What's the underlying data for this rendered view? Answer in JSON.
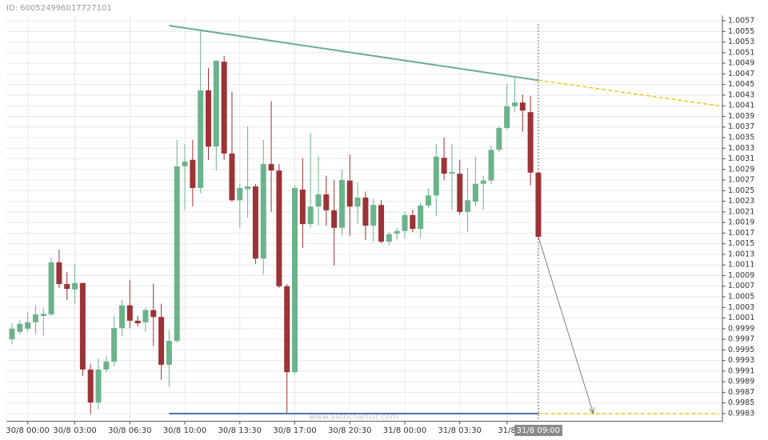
{
  "chart_data": {
    "type": "candlestick",
    "id_label": "ID: 600524996017727101",
    "watermark": "www.autochartist.com",
    "crosshair_label": "31/8 09:00",
    "up_color": "#6cb38d",
    "down_color": "#9c3336",
    "grid": true,
    "ylim": [
      0.9982,
      1.0058
    ],
    "yticks": [
      0.9983,
      0.9985,
      0.9987,
      0.9989,
      0.9991,
      0.9993,
      0.9995,
      0.9997,
      0.9999,
      1.0001,
      1.0003,
      1.0005,
      1.0007,
      1.0009,
      1.0011,
      1.0013,
      1.0015,
      1.0017,
      1.0019,
      1.0021,
      1.0023,
      1.0025,
      1.0027,
      1.0029,
      1.0031,
      1.0033,
      1.0035,
      1.0037,
      1.0039,
      1.0041,
      1.0043,
      1.0045,
      1.0047,
      1.0049,
      1.0051,
      1.0053,
      1.0055,
      1.0057
    ],
    "categories": [
      null,
      null,
      "30/8 00:00",
      null,
      null,
      null,
      null,
      null,
      "30/8 03:00",
      null,
      null,
      null,
      null,
      null,
      null,
      "30/8 06:30",
      null,
      null,
      null,
      null,
      null,
      null,
      "30/8 10:00",
      null,
      null,
      null,
      null,
      null,
      null,
      "30/8 13:30",
      null,
      null,
      null,
      null,
      null,
      null,
      "30/8 17:00",
      null,
      null,
      null,
      null,
      null,
      null,
      "30/8 20:30",
      null,
      null,
      null,
      null,
      null,
      null,
      "31/8 00:00",
      null,
      null,
      null,
      null,
      null,
      null,
      "31/8 03:30",
      null,
      null,
      null,
      null,
      null,
      "31/8",
      null,
      null,
      null,
      null
    ],
    "open": [
      0.9997,
      0.99984,
      0.9999,
      1.00002,
      1.00014,
      1.00017,
      1.00115,
      1.00074,
      1.00064,
      1.00076,
      0.99913,
      0.99851,
      0.99913,
      0.99928,
      0.99991,
      1.00034,
      1.00005,
      1.00002,
      1.00025,
      1.00012,
      0.99922,
      0.99967,
      1.00296,
      1.00308,
      1.00255,
      1.00439,
      1.00333,
      1.00493,
      1.0032,
      1.00232,
      1.00253,
      1.00258,
      1.00122,
      1.003,
      1.00288,
      1.0007,
      0.99908,
      1.00252,
      1.00187,
      1.0022,
      1.00243,
      1.00213,
      1.0018,
      1.00269,
      1.0022,
      1.00237,
      1.00184,
      1.00223,
      1.00154,
      1.00169,
      1.00174,
      1.00204,
      1.00178,
      1.00222,
      1.00241,
      1.00312,
      1.00282,
      1.00282,
      1.0021,
      1.00229,
      1.00263,
      1.00269,
      1.00327,
      1.00368,
      1.00409,
      1.00416,
      1.00398,
      1.00284
    ],
    "high": [
      1.0,
      1.00006,
      1.00021,
      1.00034,
      1.00029,
      1.00124,
      1.00139,
      1.00097,
      1.00112,
      1.00076,
      0.99924,
      0.99934,
      0.99939,
      1.00014,
      1.00044,
      1.00082,
      1.00014,
      1.00029,
      1.00075,
      1.00037,
      0.99988,
      1.00346,
      1.00338,
      1.00346,
      1.00552,
      1.00481,
      1.00495,
      1.00504,
      1.00436,
      1.00263,
      1.00371,
      1.00263,
      1.00346,
      1.00419,
      1.003,
      1.00074,
      1.0026,
      1.00311,
      1.00359,
      1.00315,
      1.00278,
      1.0027,
      1.0029,
      1.00318,
      1.00266,
      1.00248,
      1.00235,
      1.00232,
      1.00172,
      1.0018,
      1.0021,
      1.00214,
      1.00228,
      1.00255,
      1.00338,
      1.0035,
      1.00338,
      1.00308,
      1.00293,
      1.00315,
      1.00278,
      1.00335,
      1.00371,
      1.00451,
      1.00466,
      1.00431,
      1.00428,
      1.00284
    ],
    "low": [
      0.9996,
      0.99979,
      0.99984,
      0.99979,
      0.99976,
      1.00014,
      1.00067,
      1.00044,
      1.00037,
      0.99901,
      0.99829,
      0.99838,
      0.99908,
      0.99919,
      0.99976,
      0.99991,
      0.99994,
      0.99984,
      0.99957,
      0.99893,
      0.9988,
      0.99964,
      1.00214,
      1.0022,
      1.00245,
      1.00308,
      1.00288,
      1.00308,
      1.00229,
      1.0018,
      1.00199,
      1.00112,
      1.00092,
      1.0021,
      1.00067,
      0.9983,
      0.99905,
      1.00142,
      1.0018,
      1.00184,
      1.00184,
      1.00109,
      1.00165,
      1.00165,
      1.00187,
      1.00157,
      1.00154,
      1.00151,
      1.00147,
      1.00157,
      1.0016,
      1.00172,
      1.0016,
      1.00217,
      1.00202,
      1.0027,
      1.00214,
      1.00205,
      1.00172,
      1.0022,
      1.00214,
      1.00263,
      1.00323,
      1.00365,
      1.00398,
      1.00361,
      1.0026,
      1.0016
    ],
    "close": [
      0.9999,
      0.99999,
      1.00002,
      1.00017,
      1.00018,
      1.00115,
      1.00074,
      1.00065,
      1.00076,
      0.99913,
      0.99851,
      0.99913,
      0.99928,
      0.99991,
      1.00034,
      1.00005,
      1.0,
      1.00025,
      1.00012,
      0.99922,
      0.99967,
      1.00296,
      1.00305,
      1.00255,
      1.00439,
      1.00333,
      1.00495,
      1.0032,
      1.00232,
      1.00255,
      1.00258,
      1.00122,
      1.003,
      1.00288,
      1.0007,
      0.99908,
      1.00255,
      1.00187,
      1.0022,
      1.00243,
      1.00213,
      1.0018,
      1.0027,
      1.0022,
      1.00237,
      1.00184,
      1.00223,
      1.00154,
      1.00168,
      1.00174,
      1.00204,
      1.00178,
      1.00222,
      1.00241,
      1.00314,
      1.00282,
      1.00285,
      1.0021,
      1.00232,
      1.00263,
      1.00269,
      1.00327,
      1.00368,
      1.00409,
      1.00416,
      1.00401,
      1.00284,
      1.00163
    ],
    "resistance": {
      "color": "#6aae8c",
      "projection_color": "#f5c518",
      "x": [
        20,
        67,
        90
      ],
      "values": [
        1.00561,
        1.00458,
        1.0041
      ]
    },
    "support": {
      "color": "#4f72b8",
      "projection_color": "#f5c518",
      "x": [
        20,
        67,
        90
      ],
      "values": [
        0.9983,
        0.9983,
        0.9983
      ]
    },
    "forecast_arrow": {
      "color": "#808080",
      "x": [
        67,
        74
      ],
      "values": [
        1.00163,
        0.9983
      ]
    }
  }
}
